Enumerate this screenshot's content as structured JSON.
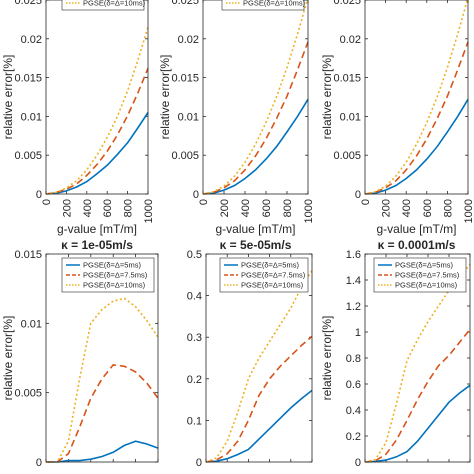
{
  "colors": {
    "pgse_5ms": "#0072BD",
    "pgse_7_5ms": "#D95319",
    "pgse_10ms": "#EDB120",
    "axis": "#262626"
  },
  "chart_data": [
    {
      "type": "line",
      "ylabel": "relative error[%]",
      "xlabel": "g-value [mT/m]",
      "kappa_label": "κ = 1e-05m/s",
      "x": [
        0,
        100,
        200,
        300,
        400,
        500,
        600,
        700,
        800,
        900,
        1000
      ],
      "xticks": [
        0,
        200,
        400,
        600,
        800,
        1000
      ],
      "xtick_labels": [
        "0",
        "200",
        "400",
        "600",
        "800",
        "1000"
      ],
      "xlim": [
        0,
        1000
      ],
      "ylim": [
        0,
        0.025
      ],
      "yticks": [
        0,
        0.005,
        0.01,
        0.015,
        0.02,
        0.025
      ],
      "ytick_labels": [
        "0",
        "0.005",
        "0.01",
        "0.015",
        "0.02",
        "0.025"
      ],
      "legend": [
        "PGSE(δ=Δ=10ms)"
      ],
      "series": [
        {
          "name": "PGSE(δ=Δ=5ms)",
          "color": "pgse_5ms",
          "dash": "solid",
          "values": [
            0,
            0.0001,
            0.0004,
            0.0009,
            0.0016,
            0.0026,
            0.0037,
            0.0051,
            0.0066,
            0.0085,
            0.0105
          ]
        },
        {
          "name": "PGSE(δ=Δ=7.5ms)",
          "color": "pgse_7_5ms",
          "dash": "dash",
          "values": [
            0,
            0.0002,
            0.0006,
            0.0013,
            0.0024,
            0.0038,
            0.0055,
            0.0076,
            0.0101,
            0.013,
            0.0162
          ]
        },
        {
          "name": "PGSE(δ=Δ=10ms)",
          "color": "pgse_10ms",
          "dash": "dot",
          "values": [
            0,
            0.0002,
            0.0008,
            0.0017,
            0.0031,
            0.005,
            0.0073,
            0.01,
            0.0133,
            0.0172,
            0.0215
          ]
        }
      ]
    },
    {
      "type": "line",
      "ylabel": "relative error[%]",
      "xlabel": "g-value [mT/m]",
      "kappa_label": "κ = 5e-05m/s",
      "x": [
        0,
        100,
        200,
        300,
        400,
        500,
        600,
        700,
        800,
        900,
        1000
      ],
      "xticks": [
        0,
        200,
        400,
        600,
        800,
        1000
      ],
      "xtick_labels": [
        "0",
        "200",
        "400",
        "600",
        "800",
        "1000"
      ],
      "xlim": [
        0,
        1000
      ],
      "ylim": [
        0,
        0.025
      ],
      "yticks": [
        0,
        0.005,
        0.01,
        0.015,
        0.02,
        0.025
      ],
      "ytick_labels": [
        "0",
        "0.005",
        "0.01",
        "0.015",
        "0.02",
        "0.025"
      ],
      "legend": [
        "PGSE(δ=Δ=10ms)"
      ],
      "series": [
        {
          "name": "PGSE(δ=Δ=5ms)",
          "color": "pgse_5ms",
          "dash": "solid",
          "values": [
            0,
            0.0001,
            0.0005,
            0.0011,
            0.002,
            0.0031,
            0.0045,
            0.0061,
            0.008,
            0.01,
            0.0122
          ]
        },
        {
          "name": "PGSE(δ=Δ=7.5ms)",
          "color": "pgse_7_5ms",
          "dash": "dash",
          "values": [
            0,
            0.0002,
            0.0008,
            0.0017,
            0.0031,
            0.0049,
            0.0071,
            0.0097,
            0.0126,
            0.016,
            0.0196
          ]
        },
        {
          "name": "PGSE(δ=Δ=10ms)",
          "color": "pgse_10ms",
          "dash": "dot",
          "values": [
            0,
            0.0003,
            0.001,
            0.0023,
            0.0041,
            0.0064,
            0.0092,
            0.0125,
            0.0163,
            0.0206,
            0.0253
          ]
        }
      ]
    },
    {
      "type": "line",
      "ylabel": "relative error[%]",
      "xlabel": "g-value [mT/m]",
      "kappa_label": "κ = 0.0001m/s",
      "x": [
        0,
        100,
        200,
        300,
        400,
        500,
        600,
        700,
        800,
        900,
        1000
      ],
      "xticks": [
        0,
        200,
        400,
        600,
        800,
        1000
      ],
      "xtick_labels": [
        "0",
        "200",
        "400",
        "600",
        "800",
        "1000"
      ],
      "xlim": [
        0,
        1000
      ],
      "ylim": [
        0,
        0.025
      ],
      "yticks": [
        0,
        0.005,
        0.01,
        0.015,
        0.02,
        0.025
      ],
      "ytick_labels": [
        "0",
        "0.005",
        "0.01",
        "0.015",
        "0.02",
        "0.025"
      ],
      "legend": [],
      "series": [
        {
          "name": "PGSE(δ=Δ=5ms)",
          "color": "pgse_5ms",
          "dash": "solid",
          "values": [
            0,
            0.0001,
            0.0005,
            0.0011,
            0.002,
            0.0031,
            0.0045,
            0.0061,
            0.008,
            0.01,
            0.0122
          ]
        },
        {
          "name": "PGSE(δ=Δ=7.5ms)",
          "color": "pgse_7_5ms",
          "dash": "dash",
          "values": [
            0,
            0.0002,
            0.0008,
            0.0017,
            0.0031,
            0.0049,
            0.0071,
            0.0097,
            0.0126,
            0.016,
            0.0196
          ]
        },
        {
          "name": "PGSE(δ=Δ=10ms)",
          "color": "pgse_10ms",
          "dash": "dot",
          "values": [
            0,
            0.0003,
            0.001,
            0.0023,
            0.0041,
            0.0064,
            0.0092,
            0.0125,
            0.0163,
            0.0206,
            0.0253
          ]
        }
      ]
    },
    {
      "type": "line",
      "ylabel": "relative error[%]",
      "xlabel": "",
      "kappa_label": "",
      "x": [
        0,
        100,
        200,
        300,
        400,
        500,
        600,
        700,
        800,
        900,
        1000
      ],
      "xticks": [
        0,
        200,
        400,
        600,
        800,
        1000
      ],
      "xtick_labels": [],
      "xlim": [
        0,
        1000
      ],
      "ylim": [
        0,
        0.015
      ],
      "yticks": [
        0,
        0.005,
        0.01,
        0.015
      ],
      "ytick_labels": [
        "0",
        "0.005",
        "0.01",
        "0.015"
      ],
      "legend": [
        "PGSE(δ=Δ=5ms)",
        "PGSE(δ=Δ=7.5ms)",
        "PGSE(δ=Δ=10ms)"
      ],
      "series": [
        {
          "name": "PGSE(δ=Δ=5ms)",
          "color": "pgse_5ms",
          "dash": "solid",
          "values": [
            0,
            0,
            0.0001,
            0.0001,
            0.0002,
            0.0004,
            0.0007,
            0.0012,
            0.0015,
            0.0013,
            0.001
          ]
        },
        {
          "name": "PGSE(δ=Δ=7.5ms)",
          "color": "pgse_7_5ms",
          "dash": "dash",
          "values": [
            0,
            0,
            0.0006,
            0.0025,
            0.0046,
            0.006,
            0.007,
            0.0069,
            0.0065,
            0.0057,
            0.0046
          ]
        },
        {
          "name": "PGSE(δ=Δ=10ms)",
          "color": "pgse_10ms",
          "dash": "dot",
          "values": [
            0,
            0,
            0.0015,
            0.006,
            0.01,
            0.011,
            0.0116,
            0.0118,
            0.0112,
            0.0102,
            0.009
          ]
        }
      ]
    },
    {
      "type": "line",
      "ylabel": "",
      "xlabel": "",
      "kappa_label": "",
      "x": [
        0,
        100,
        200,
        300,
        400,
        500,
        600,
        700,
        800,
        900,
        1000
      ],
      "xticks": [
        0,
        200,
        400,
        600,
        800,
        1000
      ],
      "xtick_labels": [],
      "xlim": [
        0,
        1000
      ],
      "ylim": [
        0,
        0.5
      ],
      "yticks": [
        0,
        0.1,
        0.2,
        0.3,
        0.4,
        0.5
      ],
      "ytick_labels": [
        "0",
        "0.1",
        "0.2",
        "0.3",
        "0.4",
        "0.5"
      ],
      "legend": [
        "PGSE(δ=Δ=5ms)",
        "PGSE(δ=Δ=7.5ms)",
        "PGSE(δ=Δ=10ms)"
      ],
      "series": [
        {
          "name": "PGSE(δ=Δ=5ms)",
          "color": "pgse_5ms",
          "dash": "solid",
          "values": [
            0,
            0.002,
            0.008,
            0.018,
            0.03,
            0.055,
            0.08,
            0.105,
            0.13,
            0.152,
            0.172
          ]
        },
        {
          "name": "PGSE(δ=Δ=7.5ms)",
          "color": "pgse_7_5ms",
          "dash": "dash",
          "values": [
            0,
            0.005,
            0.02,
            0.05,
            0.1,
            0.16,
            0.2,
            0.23,
            0.255,
            0.28,
            0.302
          ]
        },
        {
          "name": "PGSE(δ=Δ=10ms)",
          "color": "pgse_10ms",
          "dash": "dot",
          "values": [
            0,
            0.01,
            0.05,
            0.12,
            0.2,
            0.25,
            0.29,
            0.33,
            0.37,
            0.42,
            0.46
          ]
        }
      ]
    },
    {
      "type": "line",
      "ylabel": "relative error[%]",
      "xlabel": "",
      "kappa_label": "",
      "x": [
        0,
        100,
        200,
        300,
        400,
        500,
        600,
        700,
        800,
        900,
        1000
      ],
      "xticks": [
        0,
        200,
        400,
        600,
        800,
        1000
      ],
      "xtick_labels": [],
      "xlim": [
        0,
        1000
      ],
      "ylim": [
        0,
        1.6
      ],
      "yticks": [
        0,
        0.2,
        0.4,
        0.6,
        0.8,
        1,
        1.2,
        1.4,
        1.6
      ],
      "ytick_labels": [
        "0",
        "0.2",
        "0.4",
        "0.6",
        "0.8",
        "1",
        "1.2",
        "1.4",
        "1.6"
      ],
      "legend": [
        "PGSE(δ=Δ=5ms)",
        "PGSE(δ=Δ=7.5ms)",
        "PGSE(δ=Δ=10ms)"
      ],
      "series": [
        {
          "name": "PGSE(δ=Δ=5ms)",
          "color": "pgse_5ms",
          "dash": "solid",
          "values": [
            0,
            0.005,
            0.015,
            0.04,
            0.08,
            0.16,
            0.26,
            0.36,
            0.46,
            0.53,
            0.59
          ]
        },
        {
          "name": "PGSE(δ=Δ=7.5ms)",
          "color": "pgse_7_5ms",
          "dash": "dash",
          "values": [
            0,
            0.01,
            0.06,
            0.17,
            0.32,
            0.48,
            0.62,
            0.74,
            0.82,
            0.92,
            1.02
          ]
        },
        {
          "name": "PGSE(δ=Δ=10ms)",
          "color": "pgse_10ms",
          "dash": "dot",
          "values": [
            0,
            0.02,
            0.15,
            0.45,
            0.78,
            0.94,
            1.08,
            1.2,
            1.32,
            1.42,
            1.52
          ]
        }
      ]
    }
  ]
}
